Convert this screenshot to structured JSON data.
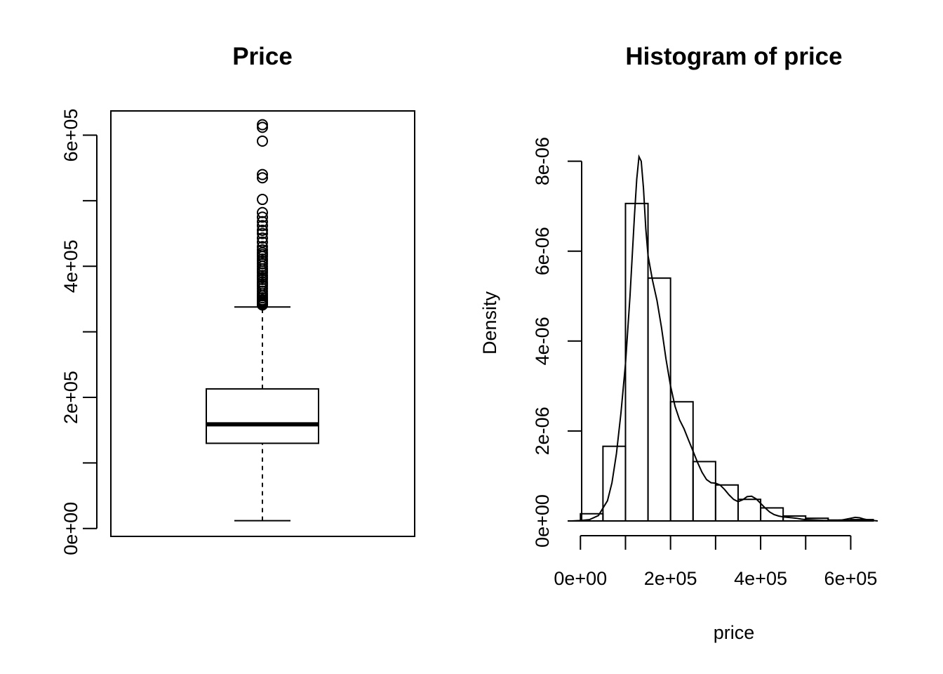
{
  "chart_data": [
    {
      "type": "box",
      "title": "Price",
      "ylim": [
        -12000,
        637000
      ],
      "yticks": [
        0,
        100000,
        200000,
        300000,
        400000,
        500000,
        600000
      ],
      "yticklabels": [
        "0e+00",
        "2e+05",
        "4e+05",
        "6e+05"
      ],
      "whisker_low": 12000,
      "q1": 130000,
      "median": 159000,
      "q3": 213000,
      "whisker_high": 338000,
      "outliers": [
        341000,
        342000,
        344000,
        345000,
        347000,
        349000,
        352000,
        355000,
        358000,
        362000,
        366000,
        370000,
        373000,
        376000,
        380000,
        383000,
        386000,
        390000,
        393000,
        396000,
        400000,
        404000,
        408000,
        411000,
        415000,
        418000,
        421000,
        425000,
        430000,
        437000,
        443000,
        450000,
        455000,
        462000,
        468000,
        475000,
        482000,
        502000,
        535000,
        540000,
        591000,
        612000,
        616000
      ]
    },
    {
      "type": "histogram",
      "title": "Histogram of price",
      "xlabel": "price",
      "ylabel": "Density",
      "xlim": [
        -30000,
        660000
      ],
      "ylim": [
        0,
        8.4e-06
      ],
      "xticks": [
        0,
        100000,
        200000,
        300000,
        400000,
        500000,
        600000
      ],
      "xticklabels": [
        "0e+00",
        "2e+05",
        "4e+05",
        "6e+05"
      ],
      "yticks": [
        0,
        2e-06,
        4e-06,
        6e-06,
        8e-06
      ],
      "yticklabels": [
        "0e+00",
        "2e-06",
        "4e-06",
        "6e-06",
        "8e-06"
      ],
      "bin_edges": [
        0,
        50000,
        100000,
        150000,
        200000,
        250000,
        300000,
        350000,
        400000,
        450000,
        500000,
        550000,
        600000,
        650000
      ],
      "densities": [
        1.6e-07,
        1.66e-06,
        7.06e-06,
        5.4e-06,
        2.65e-06,
        1.32e-06,
        8e-07,
        4.8e-07,
        2.9e-07,
        1.1e-07,
        6e-08,
        2e-08,
        3e-08
      ],
      "density_curve": {
        "x": [
          -20000,
          0,
          20000,
          40000,
          60000,
          70000,
          80000,
          90000,
          100000,
          110000,
          120000,
          125000,
          130000,
          135000,
          140000,
          145000,
          150000,
          160000,
          170000,
          180000,
          190000,
          200000,
          210000,
          220000,
          230000,
          240000,
          250000,
          260000,
          270000,
          280000,
          290000,
          300000,
          310000,
          320000,
          330000,
          340000,
          350000,
          360000,
          370000,
          380000,
          390000,
          400000,
          410000,
          420000,
          430000,
          440000,
          450000,
          460000,
          470000,
          480000,
          490000,
          500000,
          520000,
          540000,
          560000,
          580000,
          600000,
          610000,
          620000,
          630000,
          640000,
          650000,
          660000
        ],
        "y": [
          0,
          1e-08,
          3e-08,
          1.2e-07,
          4.5e-07,
          8.5e-07,
          1.5e-06,
          2.4e-06,
          3.5e-06,
          5e-06,
          6.8e-06,
          7.6e-06,
          8.1e-06,
          8e-06,
          7.4e-06,
          6.5e-06,
          5.9e-06,
          5.35e-06,
          4.9e-06,
          4.3e-06,
          3.6e-06,
          3e-06,
          2.55e-06,
          2.25e-06,
          2.05e-06,
          1.8e-06,
          1.55e-06,
          1.3e-06,
          1.08e-06,
          9.2e-07,
          8.5e-07,
          8.4e-07,
          8e-07,
          7e-07,
          5.8e-07,
          4.8e-07,
          4.3e-07,
          4.7e-07,
          5.4e-07,
          5.5e-07,
          4.9e-07,
          3.9e-07,
          2.9e-07,
          2e-07,
          1.4e-07,
          1.1e-07,
          9e-08,
          8e-08,
          7e-08,
          6e-08,
          4e-08,
          3e-08,
          2e-08,
          1e-08,
          1e-08,
          2e-08,
          6e-08,
          8e-08,
          7e-08,
          4e-08,
          2e-08,
          1e-08,
          0
        ]
      }
    }
  ]
}
